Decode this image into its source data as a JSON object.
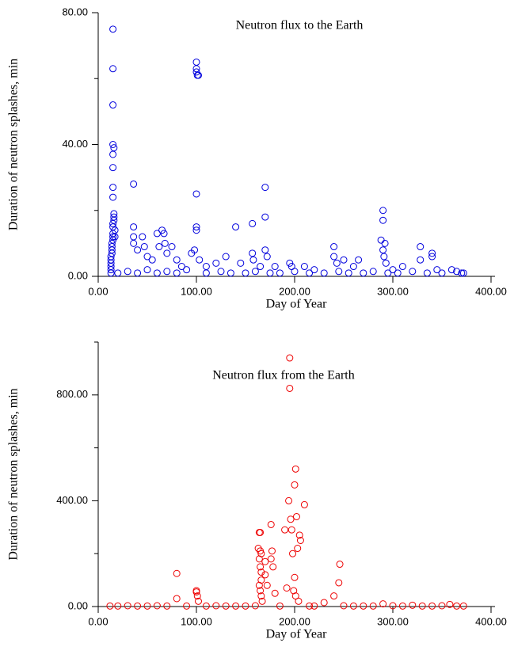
{
  "chart_data": [
    {
      "type": "scatter",
      "title": "Neutron flux to the Earth",
      "xlabel": "Day of Year",
      "ylabel": "Duration of neutron splashes, min",
      "color": "#0000dd",
      "xlim": [
        0,
        400
      ],
      "ylim": [
        0,
        80
      ],
      "xticks": [
        {
          "value": 0,
          "label": "0.00"
        },
        {
          "value": 100,
          "label": "100.00"
        },
        {
          "value": 200,
          "label": "200.00"
        },
        {
          "value": 300,
          "label": "300.00"
        },
        {
          "value": 400,
          "label": "400.00"
        }
      ],
      "yticks": [
        {
          "value": 0,
          "label": "0.00"
        },
        {
          "value": 40,
          "label": "40.00"
        },
        {
          "value": 80,
          "label": "80.00"
        }
      ],
      "yminor": [
        20,
        60
      ],
      "x": [
        15,
        15,
        15,
        15,
        16,
        15,
        15,
        15,
        15,
        16,
        16,
        16,
        15,
        15,
        15,
        15,
        15,
        14,
        14,
        14,
        14,
        13,
        13,
        13,
        13,
        13,
        13,
        17,
        17,
        36,
        36,
        36,
        36,
        40,
        45,
        47,
        50,
        55,
        60,
        62,
        65,
        67,
        68,
        70,
        75,
        80,
        85,
        95,
        98,
        100,
        100,
        100,
        101,
        102,
        100,
        100,
        100,
        103,
        110,
        120,
        130,
        140,
        145,
        157,
        157,
        158,
        165,
        170,
        170,
        170,
        172,
        180,
        195,
        197,
        210,
        220,
        240,
        240,
        243,
        250,
        260,
        265,
        288,
        290,
        290,
        292,
        290,
        291,
        293,
        300,
        310,
        328,
        328,
        340,
        340,
        345,
        360,
        370,
        20,
        30,
        40,
        50,
        60,
        70,
        80,
        90,
        110,
        125,
        135,
        150,
        160,
        175,
        185,
        200,
        215,
        230,
        245,
        255,
        270,
        280,
        295,
        305,
        320,
        335,
        350,
        365,
        372
      ],
      "values": [
        75,
        63,
        52,
        40,
        39,
        37,
        33,
        27,
        24,
        19,
        18,
        17,
        16,
        15,
        13,
        12,
        11,
        10,
        9,
        8,
        7,
        6,
        5,
        4,
        3,
        2,
        1,
        14,
        12,
        28,
        15,
        12,
        10,
        8,
        12,
        9,
        6,
        5,
        13,
        9,
        14,
        13,
        10,
        7,
        9,
        5,
        3,
        7,
        8,
        65,
        63,
        62,
        61,
        61,
        25,
        15,
        14,
        5,
        3,
        4,
        6,
        15,
        4,
        16,
        7,
        5,
        3,
        27,
        18,
        8,
        6,
        3,
        4,
        3,
        3,
        2,
        9,
        6,
        4,
        5,
        3,
        5,
        11,
        20,
        17,
        10,
        8,
        6,
        4,
        2,
        3,
        9,
        5,
        7,
        6,
        2,
        2,
        1,
        1,
        1.5,
        1,
        2,
        1,
        1.5,
        1,
        2,
        1,
        1.5,
        1,
        1,
        1.5,
        1,
        1,
        1.5,
        1,
        1,
        1.5,
        1,
        1,
        1.5,
        1,
        1,
        1.5,
        1,
        1,
        1.5,
        1
      ]
    },
    {
      "type": "scatter",
      "title": "Neutron flux from the Earth",
      "xlabel": "Day of Year",
      "ylabel": "Duration of neutron splashes, min",
      "color": "#ee0000",
      "xlim": [
        0,
        400
      ],
      "ylim": [
        0,
        1000
      ],
      "xticks": [
        {
          "value": 0,
          "label": "0.00"
        },
        {
          "value": 100,
          "label": "100.00"
        },
        {
          "value": 200,
          "label": "200.00"
        },
        {
          "value": 300,
          "label": "300.00"
        },
        {
          "value": 400,
          "label": "400.00"
        }
      ],
      "yticks": [
        {
          "value": 0,
          "label": "0.00"
        },
        {
          "value": 400,
          "label": "400.00"
        },
        {
          "value": 800,
          "label": "800.00"
        }
      ],
      "yminor": [
        200,
        600,
        1000
      ],
      "x": [
        80,
        80,
        100,
        100,
        101,
        102,
        163,
        164,
        165,
        165,
        166,
        164,
        165,
        166,
        166,
        164,
        165,
        166,
        167,
        170,
        170,
        172,
        176,
        177,
        176,
        178,
        180,
        190,
        192,
        195,
        195,
        194,
        196,
        197,
        198,
        200,
        201,
        202,
        203,
        200,
        205,
        206,
        210,
        199,
        201,
        204,
        240,
        245,
        246,
        230,
        290,
        320,
        358,
        12,
        20,
        30,
        40,
        50,
        60,
        70,
        90,
        110,
        120,
        130,
        140,
        150,
        160,
        185,
        215,
        220,
        250,
        260,
        270,
        280,
        300,
        310,
        330,
        340,
        350,
        365,
        372
      ],
      "values": [
        125,
        30,
        60,
        55,
        40,
        20,
        220,
        280,
        280,
        210,
        200,
        180,
        150,
        130,
        100,
        80,
        60,
        40,
        20,
        170,
        120,
        80,
        310,
        210,
        180,
        150,
        50,
        290,
        70,
        940,
        825,
        400,
        330,
        290,
        200,
        460,
        520,
        340,
        220,
        110,
        270,
        250,
        385,
        60,
        40,
        20,
        40,
        90,
        160,
        15,
        10,
        5,
        8,
        2,
        2,
        3,
        2,
        2,
        3,
        2,
        2,
        2,
        3,
        2,
        2,
        2,
        3,
        2,
        2,
        2,
        3,
        2,
        2,
        2,
        3,
        2,
        2,
        2,
        3,
        2,
        2
      ]
    }
  ]
}
